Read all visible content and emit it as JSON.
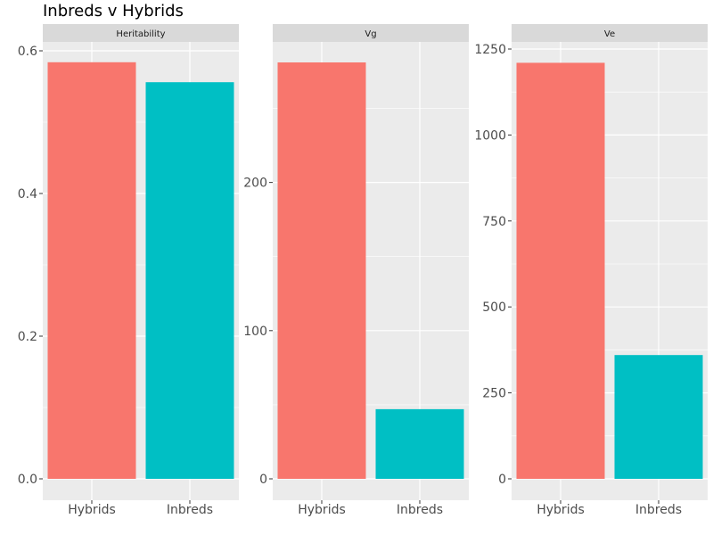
{
  "chart_data": {
    "type": "bar",
    "title": "Inbreds v Hybrids",
    "categories": [
      "Hybrids",
      "Inbreds"
    ],
    "colors": {
      "Hybrids": "#F8766D",
      "Inbreds": "#00BFC4"
    },
    "panel_background": "#EBEBEB",
    "strip_background": "#D9D9D9",
    "grid": true,
    "facets": [
      {
        "strip": "Heritability",
        "values": [
          0.584,
          0.556
        ],
        "ylim": [
          0,
          0.6
        ],
        "yticks": [
          0.0,
          0.2,
          0.4,
          0.6
        ],
        "ytick_labels": [
          "0.0",
          "0.2",
          "0.4",
          "0.6"
        ]
      },
      {
        "strip": "Vg",
        "values": [
          281,
          47
        ],
        "ylim": [
          0,
          281
        ],
        "yticks": [
          0,
          100,
          200
        ],
        "ytick_labels": [
          "0",
          "100",
          "200"
        ]
      },
      {
        "strip": "Ve",
        "values": [
          1210,
          360
        ],
        "ylim": [
          0,
          1250
        ],
        "yticks": [
          0,
          250,
          500,
          750,
          1000,
          1250
        ],
        "ytick_labels": [
          "0",
          "250",
          "500",
          "750",
          "1000",
          "1250"
        ]
      }
    ]
  }
}
